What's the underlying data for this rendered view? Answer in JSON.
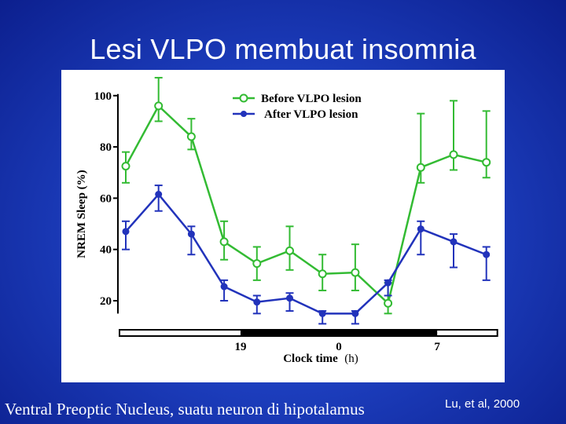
{
  "slide": {
    "title": "Lesi VLPO membuat insomnia",
    "caption": "Ventral Preoptic Nucleus, suatu neuron di hipotalamus",
    "citation": "Lu, et al, 2000"
  },
  "colors": {
    "background": "#1d3fbf",
    "before": "#33bb33",
    "after": "#2233bb",
    "panel": "#ffffff"
  },
  "chart_data": {
    "type": "line",
    "title": "",
    "xlabel": "Clock time",
    "xlabel_unit": "(h)",
    "ylabel": "NREM Sleep (%)",
    "ylim": [
      15,
      100
    ],
    "yticks": [
      "20",
      "40",
      "60",
      "80",
      "100"
    ],
    "xtick_labels": [
      {
        "label": "19",
        "at_point": 3.5
      },
      {
        "label": "0",
        "at_point": 6.5
      },
      {
        "label": "7",
        "at_point": 9.5
      }
    ],
    "dark_period": {
      "from_point": 3.5,
      "to_point": 9.5
    },
    "x": [
      0,
      1,
      2,
      3,
      4,
      5,
      6,
      7,
      8,
      9,
      10,
      11
    ],
    "series": [
      {
        "name": "Before VLPO lesion",
        "marker": "open-circle",
        "values": [
          72.5,
          96,
          84,
          43,
          34.5,
          39.5,
          30.5,
          31,
          19,
          72,
          77,
          74
        ],
        "error_upper": [
          78,
          107,
          91,
          51,
          41,
          49,
          38,
          42,
          27,
          93,
          98,
          94
        ],
        "error_lower": [
          66,
          90,
          79,
          36,
          28,
          32,
          24,
          24,
          15,
          66,
          71,
          68
        ]
      },
      {
        "name": "After VLPO lesion",
        "marker": "filled-circle",
        "values": [
          47,
          61.5,
          46,
          25.5,
          19.5,
          21,
          15,
          15,
          27,
          48,
          43,
          38
        ],
        "error_upper": [
          51,
          65,
          49,
          28,
          22,
          23,
          16,
          16,
          28,
          51,
          46,
          41
        ],
        "error_lower": [
          40,
          55,
          38,
          20,
          15,
          16,
          11,
          11,
          22,
          38,
          33,
          28
        ]
      }
    ],
    "legend_position": "top-right",
    "grid": false
  }
}
